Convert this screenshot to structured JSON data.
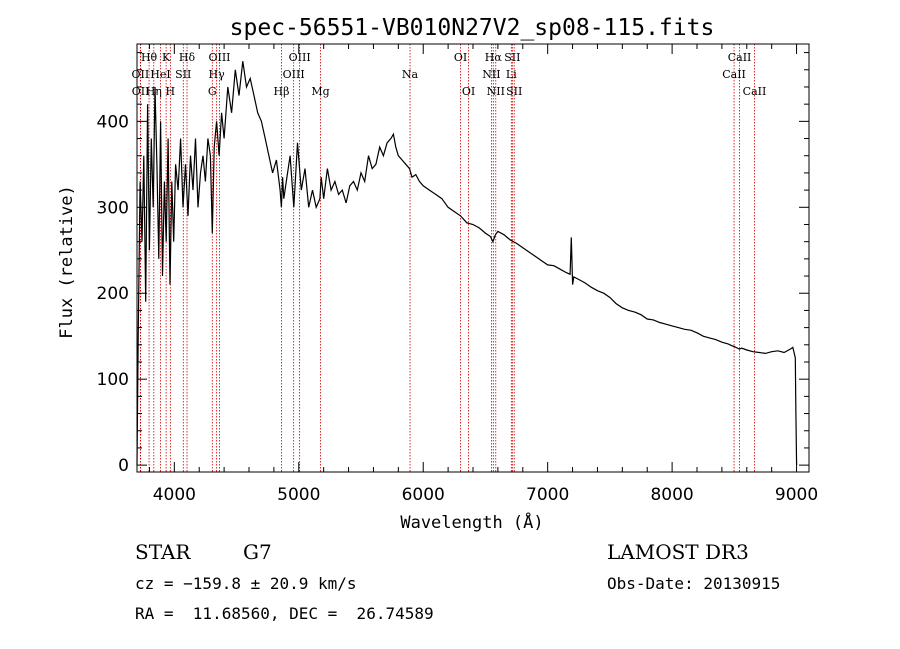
{
  "chart_data": {
    "type": "line",
    "title": "spec-56551-VB010N27V2_sp08-115.fits",
    "xlabel": "Wavelength (Å)",
    "ylabel": "Flux (relative)",
    "xlim": [
      3700,
      9100
    ],
    "ylim": [
      -8,
      490
    ],
    "x_ticks": [
      4000,
      5000,
      6000,
      7000,
      8000,
      9000
    ],
    "y_ticks": [
      0,
      100,
      200,
      300,
      400
    ],
    "grid": false,
    "series": [
      {
        "name": "flux",
        "color": "#000000",
        "x": [
          3700,
          3710,
          3725,
          3740,
          3755,
          3770,
          3785,
          3800,
          3815,
          3830,
          3845,
          3860,
          3875,
          3890,
          3905,
          3920,
          3935,
          3950,
          3965,
          3980,
          3995,
          4010,
          4030,
          4050,
          4070,
          4090,
          4110,
          4130,
          4150,
          4170,
          4190,
          4210,
          4230,
          4250,
          4270,
          4290,
          4305,
          4320,
          4340,
          4360,
          4380,
          4400,
          4430,
          4460,
          4490,
          4520,
          4550,
          4580,
          4610,
          4640,
          4670,
          4700,
          4730,
          4760,
          4790,
          4820,
          4850,
          4860,
          4870,
          4880,
          4900,
          4930,
          4960,
          4990,
          5020,
          5050,
          5080,
          5110,
          5140,
          5170,
          5180,
          5200,
          5230,
          5260,
          5290,
          5320,
          5350,
          5380,
          5410,
          5440,
          5470,
          5500,
          5530,
          5560,
          5590,
          5620,
          5650,
          5680,
          5710,
          5740,
          5760,
          5780,
          5800,
          5830,
          5860,
          5890,
          5910,
          5940,
          5970,
          6000,
          6050,
          6100,
          6150,
          6200,
          6250,
          6300,
          6350,
          6400,
          6450,
          6500,
          6540,
          6560,
          6580,
          6600,
          6650,
          6700,
          6750,
          6800,
          6850,
          6900,
          6950,
          7000,
          7050,
          7100,
          7150,
          7180,
          7190,
          7200,
          7210,
          7250,
          7300,
          7350,
          7400,
          7450,
          7500,
          7550,
          7600,
          7650,
          7700,
          7750,
          7800,
          7850,
          7900,
          7950,
          8000,
          8050,
          8100,
          8150,
          8200,
          8250,
          8300,
          8350,
          8400,
          8450,
          8480,
          8500,
          8540,
          8560,
          8600,
          8650,
          8700,
          8750,
          8800,
          8850,
          8900,
          8950,
          8970,
          8990,
          8995,
          9000
        ],
        "values": [
          0,
          150,
          330,
          260,
          360,
          190,
          420,
          250,
          380,
          300,
          440,
          350,
          240,
          400,
          220,
          330,
          260,
          380,
          210,
          330,
          260,
          350,
          320,
          380,
          300,
          350,
          290,
          360,
          320,
          380,
          300,
          340,
          360,
          330,
          380,
          360,
          270,
          370,
          400,
          360,
          410,
          380,
          440,
          410,
          460,
          430,
          470,
          440,
          450,
          430,
          410,
          400,
          380,
          360,
          340,
          355,
          320,
          300,
          335,
          310,
          330,
          360,
          300,
          375,
          320,
          345,
          300,
          320,
          300,
          310,
          335,
          310,
          345,
          320,
          330,
          315,
          320,
          305,
          325,
          330,
          320,
          340,
          330,
          360,
          345,
          350,
          370,
          360,
          375,
          380,
          385,
          370,
          360,
          355,
          350,
          345,
          335,
          338,
          330,
          325,
          320,
          315,
          310,
          300,
          295,
          290,
          282,
          280,
          276,
          270,
          266,
          260,
          268,
          272,
          268,
          262,
          258,
          253,
          248,
          243,
          238,
          233,
          232,
          228,
          224,
          222,
          265,
          210,
          219,
          216,
          212,
          207,
          203,
          200,
          195,
          188,
          183,
          180,
          178,
          175,
          170,
          169,
          166,
          164,
          162,
          160,
          158,
          157,
          154,
          150,
          148,
          146,
          143,
          141,
          139,
          138,
          135,
          136,
          134,
          132,
          131,
          130,
          132,
          133,
          131,
          135,
          137,
          125,
          60,
          0
        ]
      }
    ],
    "spectral_lines": [
      {
        "label": "Hθ",
        "wavelength": 3797,
        "row": 0
      },
      {
        "label": "OII",
        "wavelength": 3727,
        "row": 1
      },
      {
        "label": "OII",
        "wavelength": 3729,
        "row": 2
      },
      {
        "label": "HeI",
        "wavelength": 3889,
        "row": 1
      },
      {
        "label": "Hη",
        "wavelength": 3835,
        "row": 2
      },
      {
        "label": "K",
        "wavelength": 3934,
        "row": 0
      },
      {
        "label": "H",
        "wavelength": 3968,
        "row": 2
      },
      {
        "label": "SII",
        "wavelength": 4072,
        "row": 1
      },
      {
        "label": "Hδ",
        "wavelength": 4102,
        "row": 0
      },
      {
        "label": "OIII",
        "wavelength": 4363,
        "row": 0
      },
      {
        "label": "Hγ",
        "wavelength": 4340,
        "row": 1
      },
      {
        "label": "G",
        "wavelength": 4305,
        "row": 2
      },
      {
        "label": "Hβ",
        "wavelength": 4861,
        "row": 2
      },
      {
        "label": "OIII",
        "wavelength": 5007,
        "row": 0
      },
      {
        "label": "OIII",
        "wavelength": 4959,
        "row": 1
      },
      {
        "label": "Mg",
        "wavelength": 5175,
        "row": 2
      },
      {
        "label": "Na",
        "wavelength": 5894,
        "row": 1
      },
      {
        "label": "OI",
        "wavelength": 6300,
        "row": 0
      },
      {
        "label": "OI",
        "wavelength": 6364,
        "row": 2
      },
      {
        "label": "Hα",
        "wavelength": 6563,
        "row": 0
      },
      {
        "label": "NII",
        "wavelength": 6548,
        "row": 1
      },
      {
        "label": "NII",
        "wavelength": 6583,
        "row": 2
      },
      {
        "label": "SII",
        "wavelength": 6716,
        "row": 0
      },
      {
        "label": "Li",
        "wavelength": 6708,
        "row": 1
      },
      {
        "label": "SII",
        "wavelength": 6731,
        "row": 2
      },
      {
        "label": "CaII",
        "wavelength": 8542,
        "row": 0
      },
      {
        "label": "CaII",
        "wavelength": 8498,
        "row": 1
      },
      {
        "label": "CaII",
        "wavelength": 8662,
        "row": 2
      }
    ]
  },
  "info": {
    "object_class": "STAR",
    "subclass": "G7",
    "survey": "LAMOST DR3",
    "redshift_line": "cz = −159.8 ± 20.9 km/s",
    "obs_date": "Obs-Date: 20130915",
    "coordinates": "RA =  11.68560, DEC =  26.74589"
  },
  "colors": {
    "line_marker": "#cc0000",
    "spectrum": "#000000",
    "axes": "#000000"
  }
}
